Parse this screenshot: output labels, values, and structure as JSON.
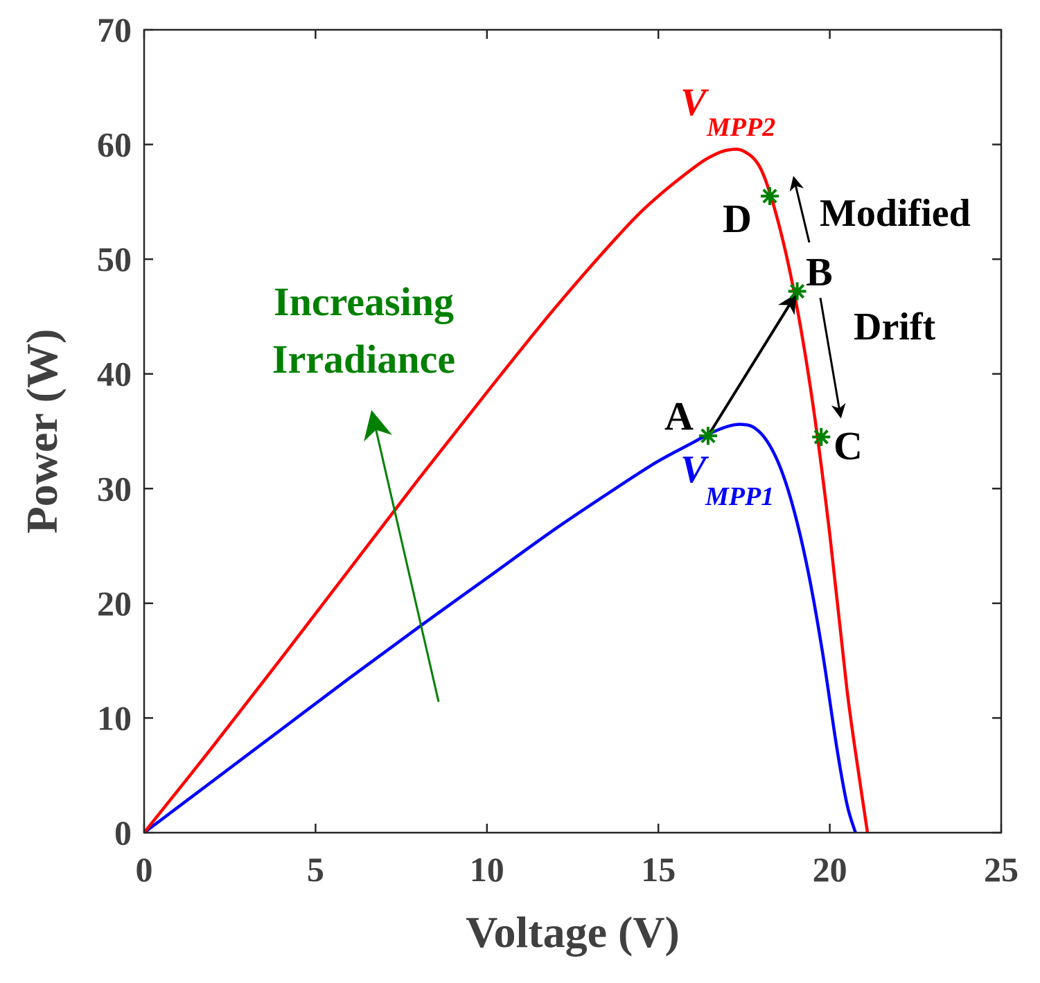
{
  "chart_data": {
    "type": "line",
    "title": "",
    "xlabel": "Voltage (V)",
    "ylabel": "Power (W)",
    "xlim": [
      0,
      25
    ],
    "ylim": [
      0,
      70
    ],
    "xticks": [
      0,
      5,
      10,
      15,
      20,
      25
    ],
    "yticks": [
      0,
      10,
      20,
      30,
      40,
      50,
      60,
      70
    ],
    "grid": false,
    "colors": {
      "axis": "#262626",
      "text": "#404040",
      "annotation": "#000000",
      "highlight": "#008000"
    },
    "series": [
      {
        "name": "V_MPP1 curve",
        "color": "#0000ff",
        "x": [
          0,
          2,
          4,
          6,
          8,
          10,
          12,
          14,
          15,
          16,
          16.5,
          17,
          17.4,
          17.8,
          18.2,
          18.6,
          19,
          19.4,
          19.8,
          20.2,
          20.5,
          20.75
        ],
        "y": [
          0,
          4.5,
          9.0,
          13.5,
          17.9,
          22.2,
          26.5,
          30.5,
          32.4,
          34.0,
          34.8,
          35.4,
          35.6,
          35.3,
          34.0,
          31.5,
          27.6,
          22.3,
          15.5,
          7.5,
          2.5,
          0
        ]
      },
      {
        "name": "V_MPP2 curve",
        "color": "#ff0000",
        "x": [
          0,
          2,
          4,
          6,
          8,
          10,
          12,
          14,
          15,
          16,
          16.5,
          17,
          17.5,
          18,
          18.5,
          19,
          19.5,
          20,
          20.5,
          20.9,
          21.1
        ],
        "y": [
          0,
          7.5,
          15.2,
          23.0,
          30.8,
          38.4,
          45.8,
          52.6,
          55.5,
          57.9,
          58.9,
          59.5,
          59.4,
          57.8,
          53.2,
          46.5,
          37.5,
          26.0,
          12.5,
          4.0,
          0
        ]
      }
    ],
    "points": [
      {
        "label": "A",
        "x": 16.45,
        "y": 34.6
      },
      {
        "label": "B",
        "x": 19.05,
        "y": 47.2
      },
      {
        "label": "C",
        "x": 19.75,
        "y": 34.5
      },
      {
        "label": "D",
        "x": 18.25,
        "y": 55.5
      }
    ],
    "annotations": {
      "increasing_irradiance": [
        "Increasing",
        "Irradiance"
      ],
      "modified": "Modified",
      "drift": "Drift",
      "vmpp1_main": "V",
      "vmpp1_sub": "MPP1",
      "vmpp2_main": "V",
      "vmpp2_sub": "MPP2"
    }
  }
}
